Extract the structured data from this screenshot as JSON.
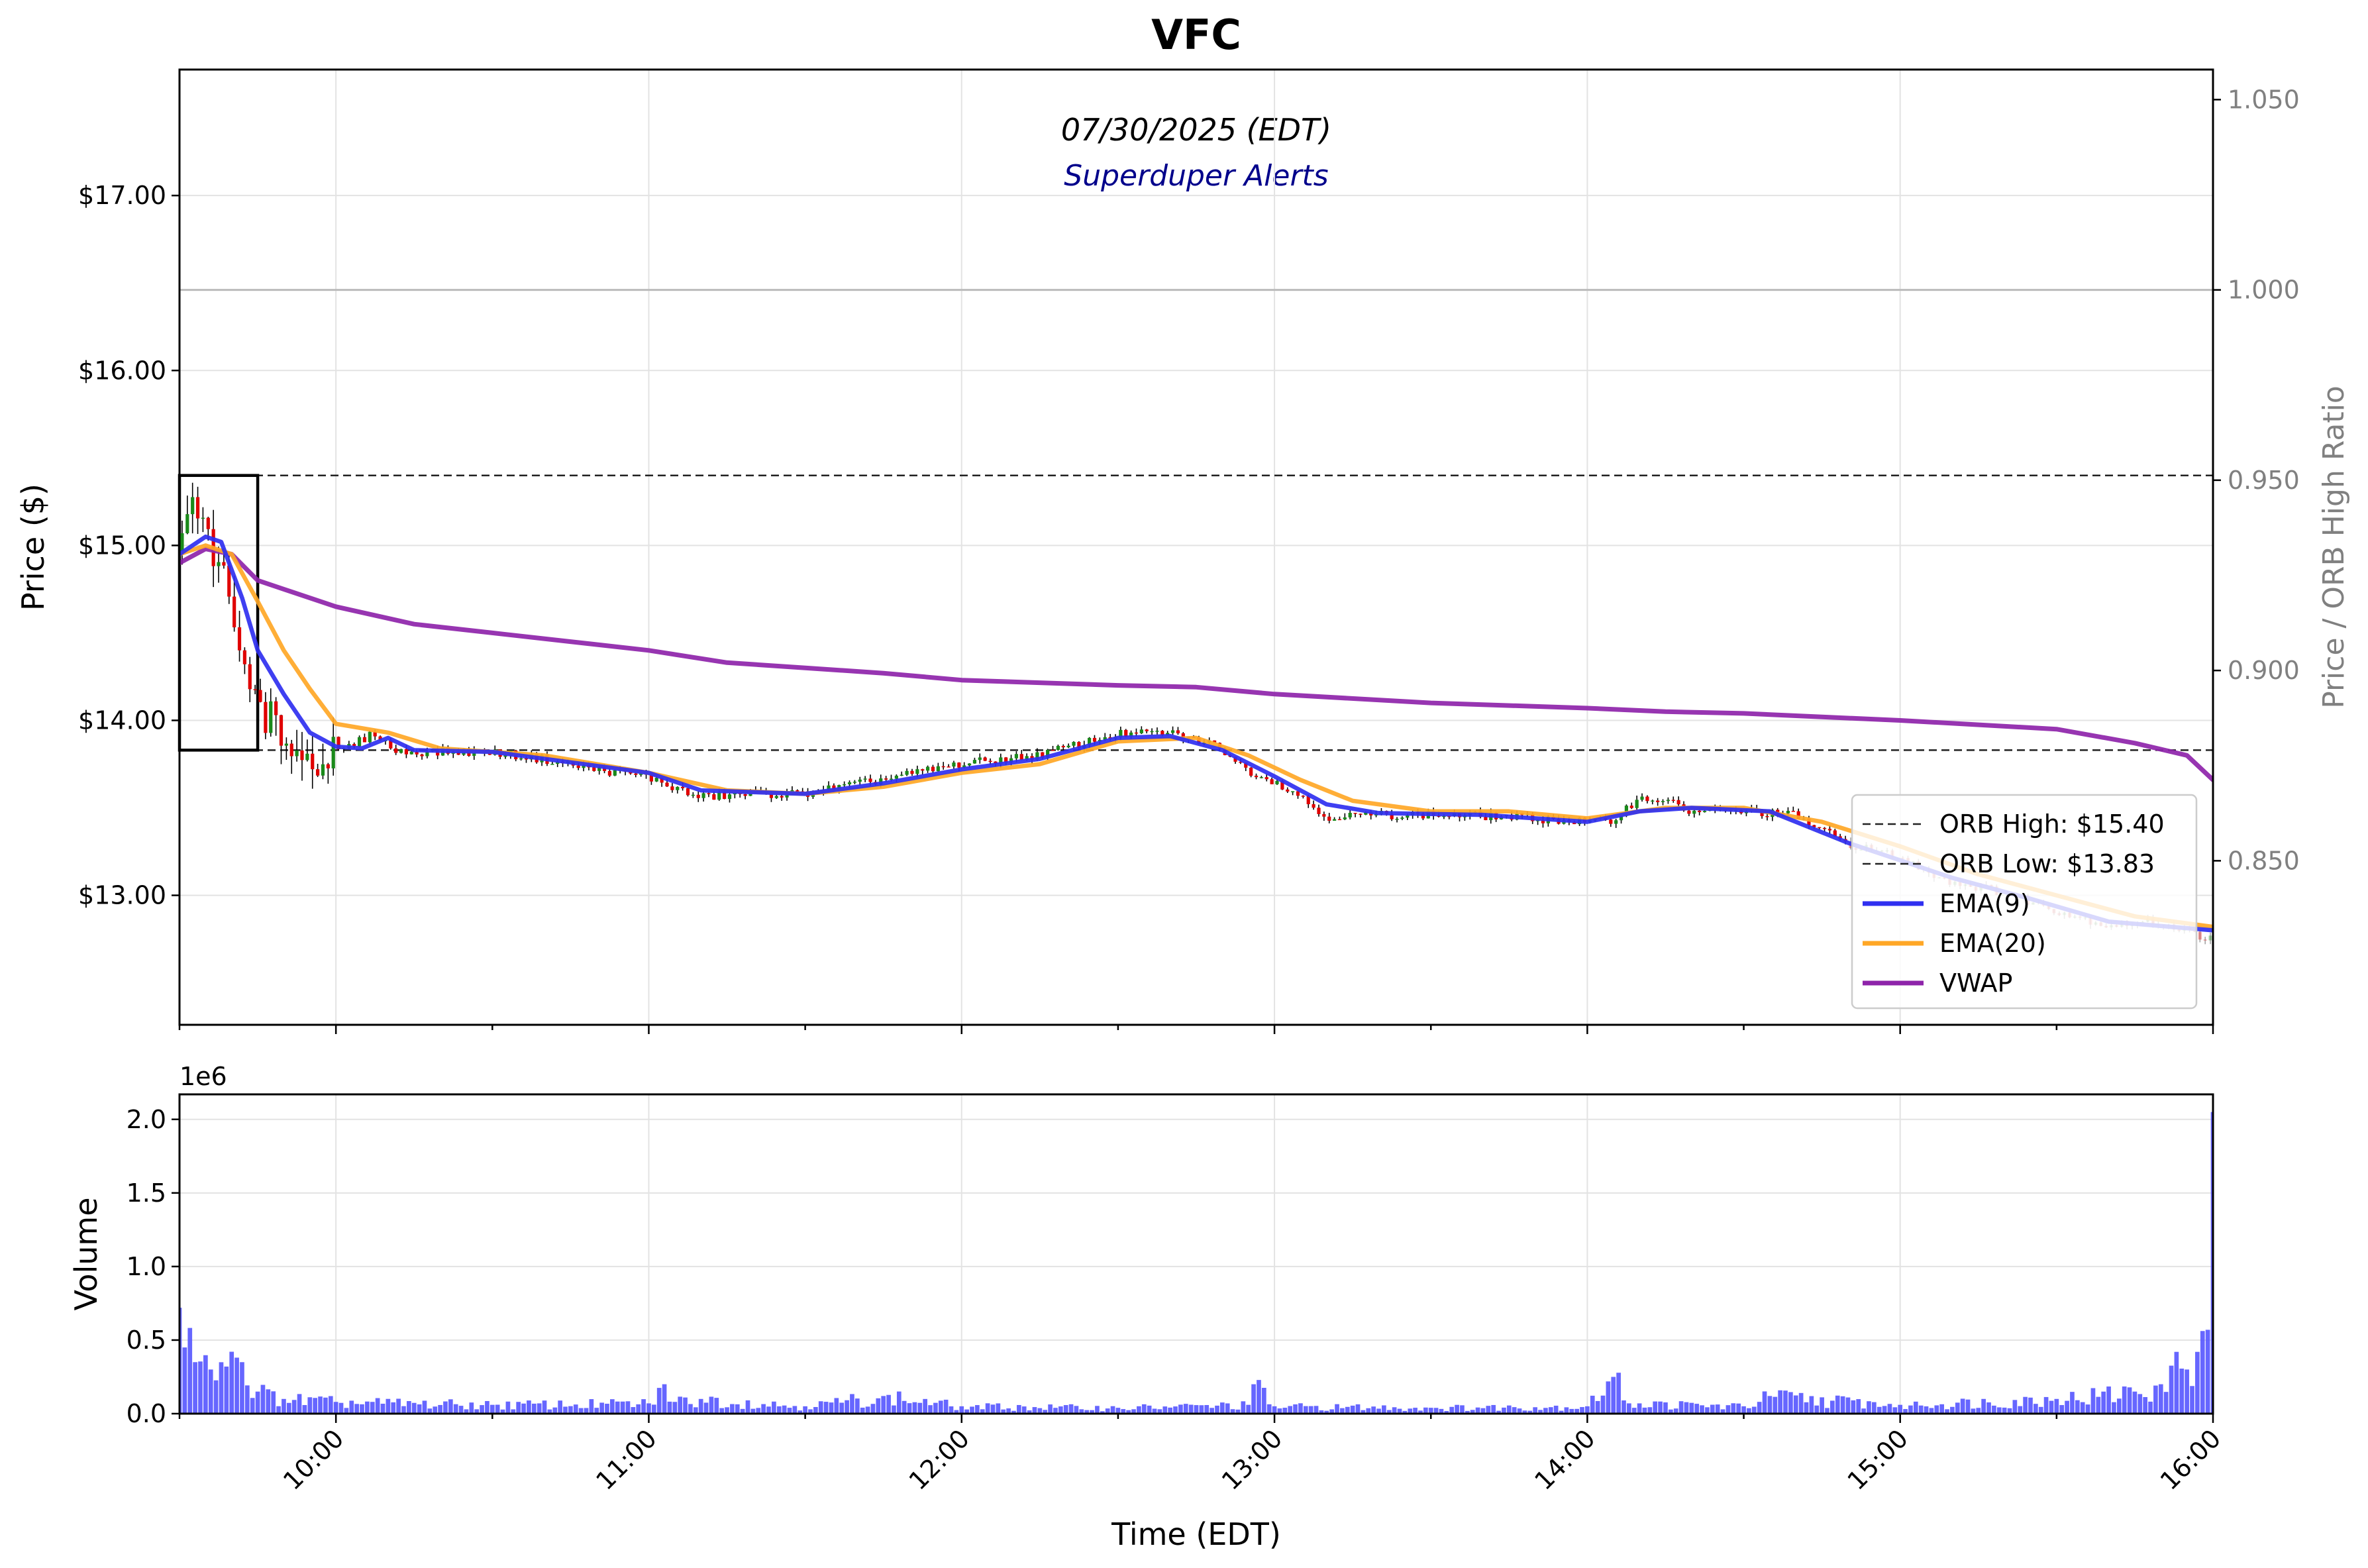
{
  "chart_data": [
    {
      "type": "candlestick",
      "title": "VFC",
      "subtitle": "07/30/2025 (EDT)",
      "watermark": "Superduper Alerts",
      "xlabel": "Time (EDT)",
      "ylabel": "Price ($)",
      "y2label": "Price / ORB High Ratio",
      "x_range": [
        "09:30",
        "16:00"
      ],
      "ylim": [
        12.26,
        17.72
      ],
      "y2lim": [
        0.8069,
        1.0579
      ],
      "x_ticks": [
        "10:00",
        "11:00",
        "12:00",
        "13:00",
        "14:00",
        "15:00",
        "16:00"
      ],
      "y_ticks": [
        {
          "value": 13.0,
          "label": "$13.00"
        },
        {
          "value": 14.0,
          "label": "$14.00"
        },
        {
          "value": 15.0,
          "label": "$15.00"
        },
        {
          "value": 16.0,
          "label": "$16.00"
        },
        {
          "value": 17.0,
          "label": "$17.00"
        }
      ],
      "y2_ticks": [
        {
          "value": 0.85,
          "label": "0.850"
        },
        {
          "value": 0.9,
          "label": "0.900"
        },
        {
          "value": 0.95,
          "label": "0.950"
        },
        {
          "value": 1.0,
          "label": "1.000"
        },
        {
          "value": 1.05,
          "label": "1.050"
        }
      ],
      "orb_high": 15.4,
      "orb_low": 13.83,
      "orb_window": [
        "09:30",
        "09:45"
      ],
      "ratio_reference": 1.0,
      "grid": true,
      "legend_position": "lower-right",
      "legend": [
        {
          "label": "ORB High: $15.40",
          "style": "dashed",
          "color": "#222222"
        },
        {
          "label": "ORB Low: $13.83",
          "style": "dashed",
          "color": "#222222"
        },
        {
          "label": "EMA(9)",
          "style": "solid",
          "color": "#2f2ff0"
        },
        {
          "label": "EMA(20)",
          "style": "solid",
          "color": "#ffa726"
        },
        {
          "label": "VWAP",
          "style": "solid",
          "color": "#8e24aa"
        }
      ],
      "colors": {
        "up": "#1a8a1a",
        "down": "#e00000",
        "ema9": "#2f2ff0",
        "ema20": "#ffa726",
        "vwap": "#8e24aa",
        "volume": "#5555ff"
      },
      "price_path": [
        [
          "09:30",
          14.95
        ],
        [
          "09:33",
          15.2
        ],
        [
          "09:36",
          15.05
        ],
        [
          "09:39",
          14.8
        ],
        [
          "09:42",
          14.4
        ],
        [
          "09:45",
          14.05
        ],
        [
          "09:48",
          14.0
        ],
        [
          "09:51",
          13.9
        ],
        [
          "09:54",
          13.78
        ],
        [
          "10:00",
          13.8
        ],
        [
          "10:05",
          13.88
        ],
        [
          "10:08",
          13.93
        ],
        [
          "10:12",
          13.82
        ],
        [
          "10:20",
          13.82
        ],
        [
          "10:30",
          13.82
        ],
        [
          "10:40",
          13.78
        ],
        [
          "10:50",
          13.72
        ],
        [
          "11:00",
          13.68
        ],
        [
          "11:05",
          13.62
        ],
        [
          "11:10",
          13.56
        ],
        [
          "11:20",
          13.58
        ],
        [
          "11:30",
          13.58
        ],
        [
          "11:45",
          13.66
        ],
        [
          "12:00",
          13.75
        ],
        [
          "12:15",
          13.8
        ],
        [
          "12:30",
          13.92
        ],
        [
          "12:40",
          13.93
        ],
        [
          "12:50",
          13.85
        ],
        [
          "12:55",
          13.72
        ],
        [
          "13:00",
          13.66
        ],
        [
          "13:05",
          13.58
        ],
        [
          "13:10",
          13.45
        ],
        [
          "13:20",
          13.46
        ],
        [
          "13:30",
          13.46
        ],
        [
          "13:45",
          13.45
        ],
        [
          "14:00",
          13.42
        ],
        [
          "14:05",
          13.42
        ],
        [
          "14:10",
          13.55
        ],
        [
          "14:15",
          13.55
        ],
        [
          "14:20",
          13.48
        ],
        [
          "14:30",
          13.48
        ],
        [
          "14:40",
          13.46
        ],
        [
          "14:50",
          13.3
        ],
        [
          "15:00",
          13.22
        ],
        [
          "15:10",
          13.08
        ],
        [
          "15:20",
          13.02
        ],
        [
          "15:30",
          12.92
        ],
        [
          "15:40",
          12.83
        ],
        [
          "15:50",
          12.85
        ],
        [
          "16:00",
          12.75
        ]
      ],
      "ema9": [
        [
          "09:30",
          14.95
        ],
        [
          "09:35",
          15.05
        ],
        [
          "09:38",
          15.02
        ],
        [
          "09:42",
          14.7
        ],
        [
          "09:45",
          14.4
        ],
        [
          "09:50",
          14.15
        ],
        [
          "09:55",
          13.93
        ],
        [
          "10:00",
          13.85
        ],
        [
          "10:05",
          13.84
        ],
        [
          "10:10",
          13.9
        ],
        [
          "10:15",
          13.83
        ],
        [
          "10:30",
          13.82
        ],
        [
          "10:45",
          13.76
        ],
        [
          "11:00",
          13.7
        ],
        [
          "11:10",
          13.6
        ],
        [
          "11:30",
          13.58
        ],
        [
          "11:45",
          13.64
        ],
        [
          "12:00",
          13.72
        ],
        [
          "12:15",
          13.78
        ],
        [
          "12:30",
          13.9
        ],
        [
          "12:40",
          13.91
        ],
        [
          "12:50",
          13.83
        ],
        [
          "13:00",
          13.68
        ],
        [
          "13:10",
          13.52
        ],
        [
          "13:20",
          13.47
        ],
        [
          "13:40",
          13.46
        ],
        [
          "14:00",
          13.42
        ],
        [
          "14:10",
          13.48
        ],
        [
          "14:20",
          13.5
        ],
        [
          "14:35",
          13.48
        ],
        [
          "14:50",
          13.3
        ],
        [
          "15:00",
          13.2
        ],
        [
          "15:10",
          13.1
        ],
        [
          "15:25",
          12.98
        ],
        [
          "15:40",
          12.85
        ],
        [
          "16:00",
          12.8
        ]
      ],
      "ema20": [
        [
          "09:30",
          14.95
        ],
        [
          "09:35",
          15.0
        ],
        [
          "09:40",
          14.95
        ],
        [
          "09:45",
          14.68
        ],
        [
          "09:50",
          14.4
        ],
        [
          "09:55",
          14.18
        ],
        [
          "10:00",
          13.98
        ],
        [
          "10:10",
          13.93
        ],
        [
          "10:20",
          13.84
        ],
        [
          "10:40",
          13.8
        ],
        [
          "11:00",
          13.7
        ],
        [
          "11:15",
          13.6
        ],
        [
          "11:30",
          13.58
        ],
        [
          "11:45",
          13.62
        ],
        [
          "12:00",
          13.7
        ],
        [
          "12:15",
          13.75
        ],
        [
          "12:30",
          13.88
        ],
        [
          "12:45",
          13.9
        ],
        [
          "12:55",
          13.8
        ],
        [
          "13:05",
          13.66
        ],
        [
          "13:15",
          13.54
        ],
        [
          "13:30",
          13.48
        ],
        [
          "13:45",
          13.48
        ],
        [
          "14:00",
          13.44
        ],
        [
          "14:15",
          13.5
        ],
        [
          "14:30",
          13.5
        ],
        [
          "14:45",
          13.42
        ],
        [
          "15:00",
          13.28
        ],
        [
          "15:15",
          13.12
        ],
        [
          "15:30",
          13.0
        ],
        [
          "15:45",
          12.88
        ],
        [
          "16:00",
          12.82
        ]
      ],
      "vwap": [
        [
          "09:30",
          14.9
        ],
        [
          "09:35",
          14.98
        ],
        [
          "09:40",
          14.95
        ],
        [
          "09:45",
          14.8
        ],
        [
          "09:50",
          14.75
        ],
        [
          "10:00",
          14.65
        ],
        [
          "10:15",
          14.55
        ],
        [
          "10:30",
          14.5
        ],
        [
          "10:45",
          14.45
        ],
        [
          "11:00",
          14.4
        ],
        [
          "11:15",
          14.33
        ],
        [
          "11:30",
          14.3
        ],
        [
          "11:45",
          14.27
        ],
        [
          "12:00",
          14.23
        ],
        [
          "12:30",
          14.2
        ],
        [
          "12:45",
          14.19
        ],
        [
          "13:00",
          14.15
        ],
        [
          "13:30",
          14.1
        ],
        [
          "14:00",
          14.07
        ],
        [
          "14:15",
          14.05
        ],
        [
          "14:30",
          14.04
        ],
        [
          "14:45",
          14.02
        ],
        [
          "15:00",
          14.0
        ],
        [
          "15:30",
          13.95
        ],
        [
          "15:45",
          13.87
        ],
        [
          "15:55",
          13.8
        ],
        [
          "16:00",
          13.66
        ]
      ],
      "candle_interval_minutes": 1
    },
    {
      "type": "bar",
      "ylabel": "Volume",
      "y_scale_label": "1e6",
      "ylim": [
        0,
        2.17
      ],
      "y_ticks": [
        {
          "value": 0.0,
          "label": "0.0"
        },
        {
          "value": 0.5,
          "label": "0.5"
        },
        {
          "value": 1.0,
          "label": "1.0"
        },
        {
          "value": 1.5,
          "label": "1.5"
        },
        {
          "value": 2.0,
          "label": "2.0"
        }
      ],
      "volume_profile_millions": [
        [
          "09:30",
          0.72
        ],
        [
          "09:31",
          0.45
        ],
        [
          "09:33",
          0.35
        ],
        [
          "09:36",
          0.3
        ],
        [
          "09:39",
          0.32
        ],
        [
          "09:42",
          0.35
        ],
        [
          "09:45",
          0.15
        ],
        [
          "09:50",
          0.1
        ],
        [
          "10:00",
          0.08
        ],
        [
          "10:30",
          0.06
        ],
        [
          "11:00",
          0.07
        ],
        [
          "11:03",
          0.2
        ],
        [
          "11:05",
          0.08
        ],
        [
          "11:10",
          0.1
        ],
        [
          "11:30",
          0.05
        ],
        [
          "11:45",
          0.12
        ],
        [
          "12:00",
          0.05
        ],
        [
          "12:30",
          0.04
        ],
        [
          "12:55",
          0.06
        ],
        [
          "12:56",
          0.2
        ],
        [
          "13:00",
          0.05
        ],
        [
          "13:30",
          0.04
        ],
        [
          "14:00",
          0.05
        ],
        [
          "14:05",
          0.25
        ],
        [
          "14:08",
          0.07
        ],
        [
          "14:30",
          0.05
        ],
        [
          "14:35",
          0.12
        ],
        [
          "15:00",
          0.06
        ],
        [
          "15:30",
          0.1
        ],
        [
          "15:45",
          0.15
        ],
        [
          "15:50",
          0.2
        ],
        [
          "15:53",
          0.42
        ],
        [
          "15:55",
          0.3
        ],
        [
          "15:57",
          0.42
        ],
        [
          "15:59",
          0.57
        ],
        [
          "16:00",
          2.05
        ]
      ]
    }
  ]
}
